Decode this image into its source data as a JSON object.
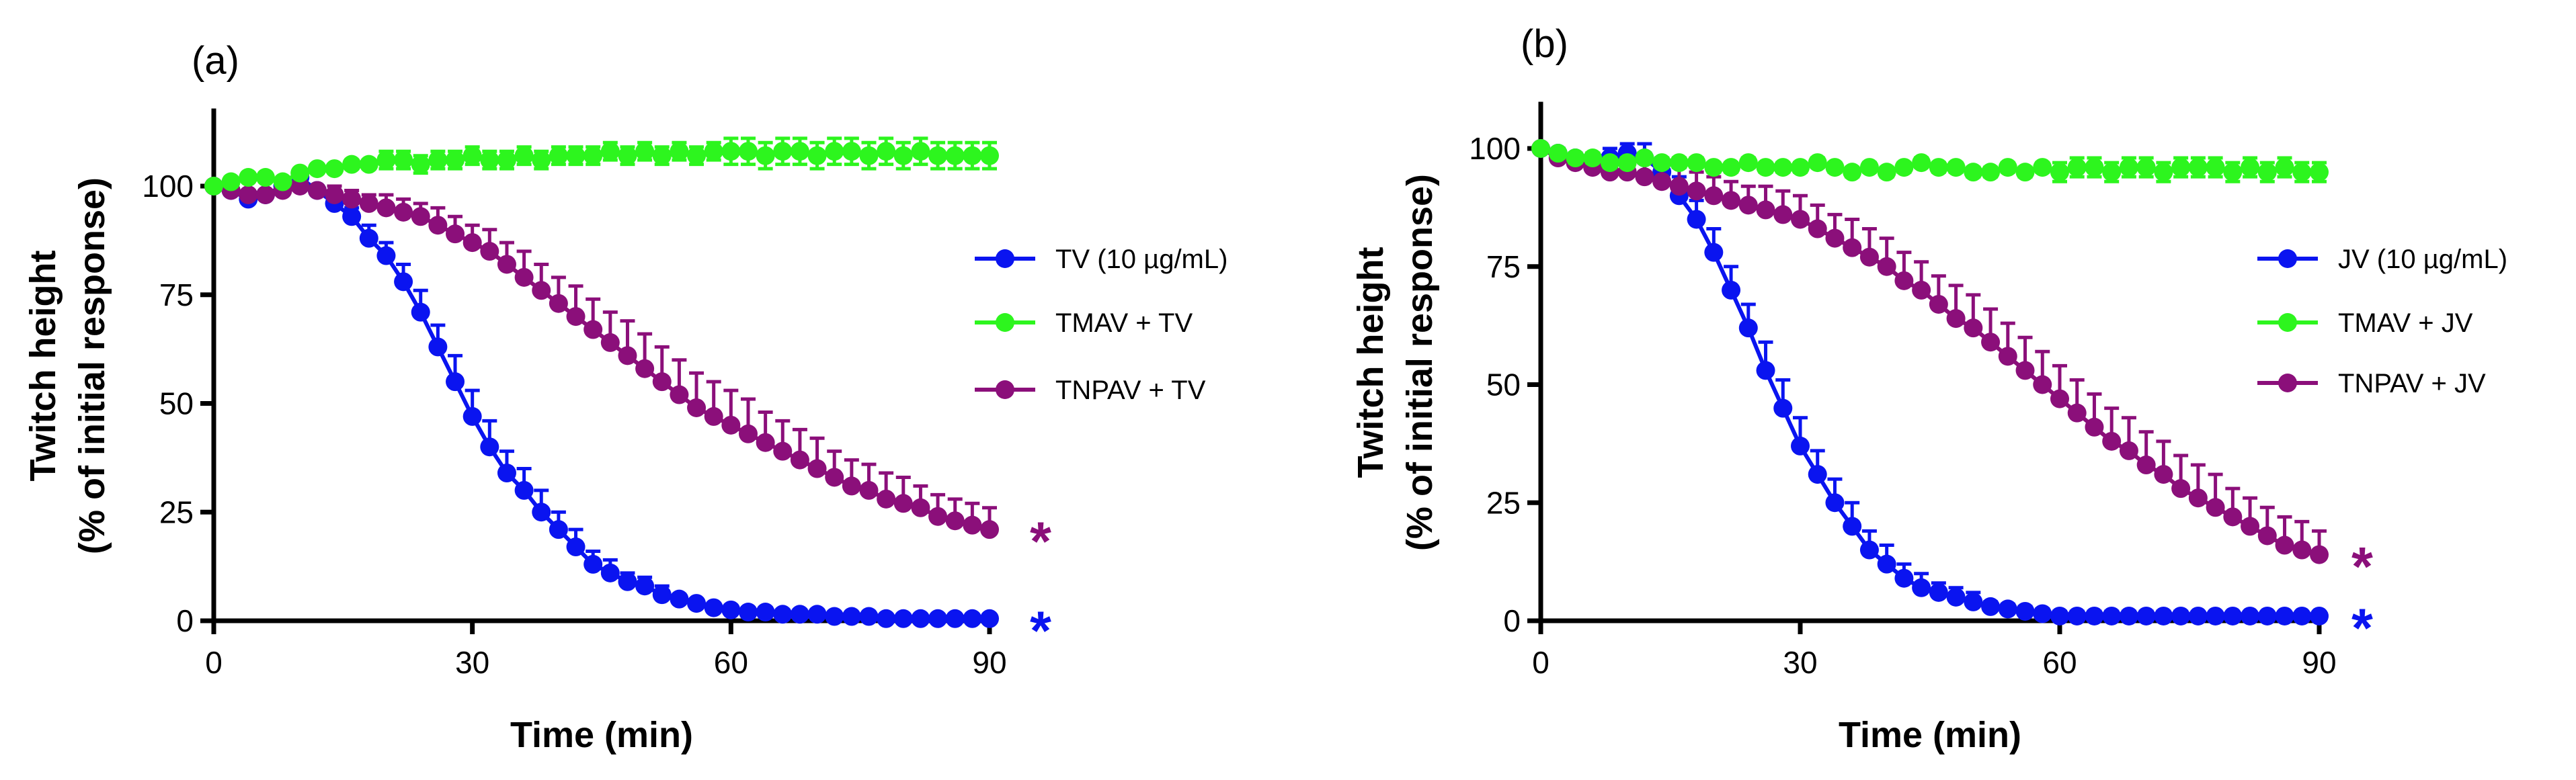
{
  "chart_data": [
    {
      "type": "line",
      "panel_label": "(a)",
      "xlabel": "Time (min)",
      "ylabel": [
        "Twitch height",
        "(% of initial response)"
      ],
      "xlim": [
        0,
        90
      ],
      "ylim": [
        0,
        115
      ],
      "xticks": [
        0,
        30,
        60,
        90
      ],
      "yticks": [
        0,
        25,
        50,
        75,
        100
      ],
      "legend_position": "right",
      "series": [
        {
          "name": "TV (10 µg/mL)",
          "color": "#0a14f0",
          "significance": "*",
          "x": [
            0,
            2,
            4,
            6,
            8,
            10,
            12,
            14,
            16,
            18,
            20,
            22,
            24,
            26,
            28,
            30,
            32,
            34,
            36,
            38,
            40,
            42,
            44,
            46,
            48,
            50,
            52,
            54,
            56,
            58,
            60,
            62,
            64,
            66,
            68,
            70,
            72,
            74,
            76,
            78,
            80,
            82,
            84,
            86,
            88,
            90
          ],
          "values": [
            100,
            99,
            97,
            98,
            100,
            102,
            99,
            96,
            93,
            88,
            84,
            78,
            71,
            63,
            55,
            47,
            40,
            34,
            30,
            25,
            21,
            17,
            13,
            11,
            9,
            8,
            6,
            5,
            4,
            3,
            2.5,
            2,
            2,
            1.5,
            1.5,
            1.5,
            1,
            1,
            1,
            0.5,
            0.5,
            0.5,
            0.5,
            0.5,
            0.5,
            0.5
          ],
          "errors": [
            0,
            1,
            1,
            1,
            1,
            1,
            1,
            2,
            2,
            3,
            3,
            4,
            5,
            5,
            6,
            6,
            6,
            5,
            5,
            5,
            4,
            4,
            3,
            3,
            2,
            2,
            2,
            1,
            1,
            1,
            1,
            1,
            1,
            1,
            1,
            1,
            1,
            0,
            0,
            0,
            0,
            0,
            0,
            0,
            0,
            0
          ]
        },
        {
          "name": "TMAV + TV",
          "color": "#2df51e",
          "significance": "",
          "x": [
            0,
            2,
            4,
            6,
            8,
            10,
            12,
            14,
            16,
            18,
            20,
            22,
            24,
            26,
            28,
            30,
            32,
            34,
            36,
            38,
            40,
            42,
            44,
            46,
            48,
            50,
            52,
            54,
            56,
            58,
            60,
            62,
            64,
            66,
            68,
            70,
            72,
            74,
            76,
            78,
            80,
            82,
            84,
            86,
            88,
            90
          ],
          "values": [
            100,
            101,
            102,
            102,
            101,
            103,
            104,
            104,
            105,
            105,
            106,
            106,
            105,
            106,
            106,
            107,
            106,
            106,
            107,
            106,
            107,
            107,
            107,
            108,
            107,
            108,
            107,
            108,
            107,
            108,
            108,
            108,
            107,
            108,
            108,
            107,
            108,
            108,
            107,
            108,
            107,
            108,
            107,
            107,
            107,
            107
          ],
          "errors": [
            0,
            1,
            1,
            1,
            1,
            1,
            1,
            1,
            1,
            1,
            2,
            2,
            2,
            2,
            2,
            2,
            2,
            2,
            2,
            2,
            2,
            2,
            2,
            2,
            2,
            2,
            2,
            2,
            2,
            2,
            3,
            3,
            3,
            3,
            3,
            3,
            3,
            3,
            3,
            3,
            3,
            3,
            3,
            3,
            3,
            3
          ]
        },
        {
          "name": "TNPAV + TV",
          "color": "#8b0f7a",
          "significance": "*",
          "x": [
            0,
            2,
            4,
            6,
            8,
            10,
            12,
            14,
            16,
            18,
            20,
            22,
            24,
            26,
            28,
            30,
            32,
            34,
            36,
            38,
            40,
            42,
            44,
            46,
            48,
            50,
            52,
            54,
            56,
            58,
            60,
            62,
            64,
            66,
            68,
            70,
            72,
            74,
            76,
            78,
            80,
            82,
            84,
            86,
            88,
            90
          ],
          "values": [
            100,
            99,
            98,
            98,
            99,
            100,
            99,
            98,
            97,
            96,
            95,
            94,
            93,
            91,
            89,
            87,
            85,
            82,
            79,
            76,
            73,
            70,
            67,
            64,
            61,
            58,
            55,
            52,
            49,
            47,
            45,
            43,
            41,
            39,
            37,
            35,
            33,
            31,
            30,
            28,
            27,
            26,
            24,
            23,
            22,
            21
          ],
          "errors": [
            0,
            1,
            1,
            1,
            1,
            1,
            1,
            2,
            2,
            2,
            3,
            3,
            3,
            4,
            4,
            4,
            5,
            5,
            6,
            6,
            6,
            7,
            7,
            7,
            8,
            8,
            8,
            8,
            8,
            8,
            8,
            8,
            7,
            7,
            7,
            7,
            6,
            6,
            6,
            6,
            6,
            5,
            5,
            5,
            5,
            5
          ]
        }
      ]
    },
    {
      "type": "line",
      "panel_label": "(b)",
      "xlabel": "Time (min)",
      "ylabel": [
        "Twitch height",
        "(% of initial response)"
      ],
      "xlim": [
        0,
        90
      ],
      "ylim": [
        0,
        110
      ],
      "xticks": [
        0,
        30,
        60,
        90
      ],
      "yticks": [
        0,
        25,
        50,
        75,
        100
      ],
      "legend_position": "right",
      "series": [
        {
          "name": "JV (10 µg/mL)",
          "color": "#0a14f0",
          "significance": "*",
          "x": [
            0,
            2,
            4,
            6,
            8,
            10,
            12,
            14,
            16,
            18,
            20,
            22,
            24,
            26,
            28,
            30,
            32,
            34,
            36,
            38,
            40,
            42,
            44,
            46,
            48,
            50,
            52,
            54,
            56,
            58,
            60,
            62,
            64,
            66,
            68,
            70,
            72,
            74,
            76,
            78,
            80,
            82,
            84,
            86,
            88,
            90
          ],
          "values": [
            100,
            99,
            98,
            97,
            98,
            99,
            98,
            95,
            90,
            85,
            78,
            70,
            62,
            53,
            45,
            37,
            31,
            25,
            20,
            15,
            12,
            9,
            7,
            6,
            5,
            4,
            3,
            2.5,
            2,
            1.5,
            1,
            1,
            1,
            1,
            1,
            1,
            1,
            1,
            1,
            1,
            1,
            1,
            1,
            1,
            1,
            1
          ],
          "errors": [
            0,
            1,
            1,
            2,
            2,
            2,
            3,
            3,
            4,
            4,
            5,
            5,
            5,
            6,
            6,
            6,
            5,
            5,
            5,
            4,
            4,
            3,
            3,
            2,
            2,
            2,
            1,
            1,
            1,
            1,
            1,
            1,
            1,
            1,
            1,
            1,
            1,
            1,
            0,
            0,
            0,
            0,
            0,
            0,
            0,
            0
          ]
        },
        {
          "name": "TMAV + JV",
          "color": "#2df51e",
          "significance": "",
          "x": [
            0,
            2,
            4,
            6,
            8,
            10,
            12,
            14,
            16,
            18,
            20,
            22,
            24,
            26,
            28,
            30,
            32,
            34,
            36,
            38,
            40,
            42,
            44,
            46,
            48,
            50,
            52,
            54,
            56,
            58,
            60,
            62,
            64,
            66,
            68,
            70,
            72,
            74,
            76,
            78,
            80,
            82,
            84,
            86,
            88,
            90
          ],
          "values": [
            100,
            99,
            98,
            98,
            97,
            97,
            98,
            97,
            97,
            97,
            96,
            96,
            97,
            96,
            96,
            96,
            97,
            96,
            95,
            96,
            95,
            96,
            97,
            96,
            96,
            95,
            95,
            96,
            95,
            96,
            95,
            96,
            96,
            95,
            96,
            96,
            95,
            96,
            96,
            96,
            95,
            96,
            95,
            96,
            95,
            95
          ],
          "errors": [
            0,
            1,
            1,
            1,
            1,
            1,
            1,
            1,
            1,
            1,
            1,
            1,
            1,
            1,
            1,
            1,
            1,
            1,
            1,
            1,
            1,
            1,
            1,
            1,
            1,
            1,
            1,
            1,
            1,
            1,
            2,
            2,
            2,
            2,
            2,
            2,
            2,
            2,
            2,
            2,
            2,
            2,
            2,
            2,
            2,
            2
          ]
        },
        {
          "name": "TNPAV + JV",
          "color": "#8b0f7a",
          "significance": "*",
          "x": [
            0,
            2,
            4,
            6,
            8,
            10,
            12,
            14,
            16,
            18,
            20,
            22,
            24,
            26,
            28,
            30,
            32,
            34,
            36,
            38,
            40,
            42,
            44,
            46,
            48,
            50,
            52,
            54,
            56,
            58,
            60,
            62,
            64,
            66,
            68,
            70,
            72,
            74,
            76,
            78,
            80,
            82,
            84,
            86,
            88,
            90
          ],
          "values": [
            100,
            98,
            97,
            96,
            95,
            95,
            94,
            93,
            92,
            91,
            90,
            89,
            88,
            87,
            86,
            85,
            83,
            81,
            79,
            77,
            75,
            72,
            70,
            67,
            64,
            62,
            59,
            56,
            53,
            50,
            47,
            44,
            41,
            38,
            36,
            33,
            31,
            28,
            26,
            24,
            22,
            20,
            18,
            16,
            15,
            14
          ],
          "errors": [
            0,
            2,
            2,
            3,
            3,
            3,
            3,
            3,
            4,
            4,
            4,
            4,
            4,
            5,
            5,
            5,
            5,
            5,
            6,
            6,
            6,
            6,
            6,
            6,
            7,
            7,
            7,
            7,
            7,
            7,
            7,
            7,
            7,
            7,
            7,
            7,
            7,
            7,
            7,
            7,
            6,
            6,
            6,
            6,
            6,
            5
          ]
        }
      ]
    }
  ]
}
